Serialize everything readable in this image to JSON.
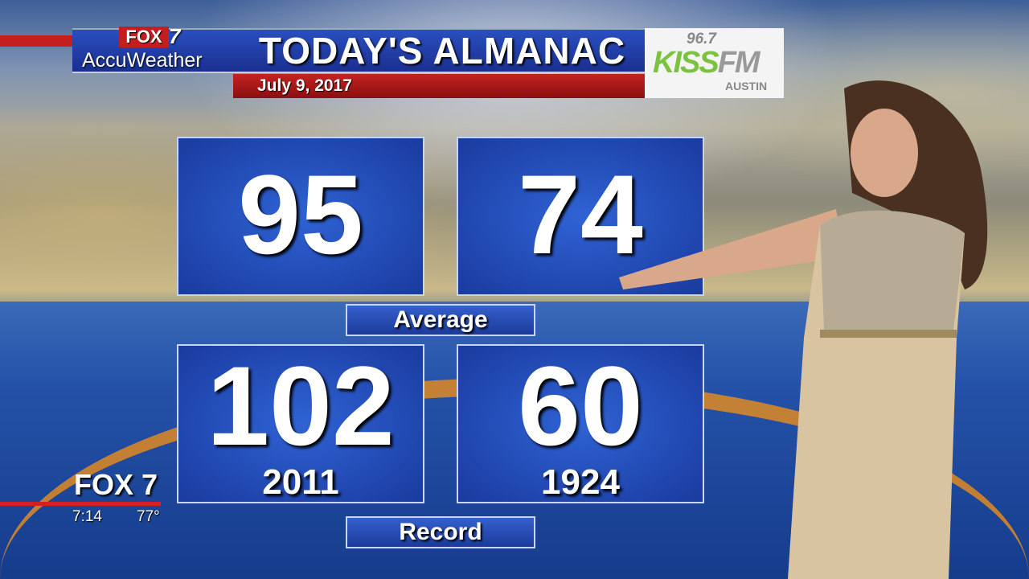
{
  "header": {
    "station": "FOX",
    "channel": "7",
    "partner": "AccuWeather",
    "title": "TODAY'S ALMANAC",
    "date": "July 9, 2017"
  },
  "sponsor": {
    "frequency": "96.7",
    "name_a": "KISS",
    "name_b": "FM",
    "city": "AUSTIN"
  },
  "average": {
    "label": "Average",
    "high": "95",
    "low": "74"
  },
  "record": {
    "label": "Record",
    "high": "102",
    "high_year": "2011",
    "low": "60",
    "low_year": "1924"
  },
  "bug": {
    "logo": "FOX 7",
    "time": "7:14",
    "temp": "77°"
  },
  "colors": {
    "fox_red": "#c41e1e",
    "panel_blue": "#2452c0",
    "kiss_green": "#7cc241"
  }
}
